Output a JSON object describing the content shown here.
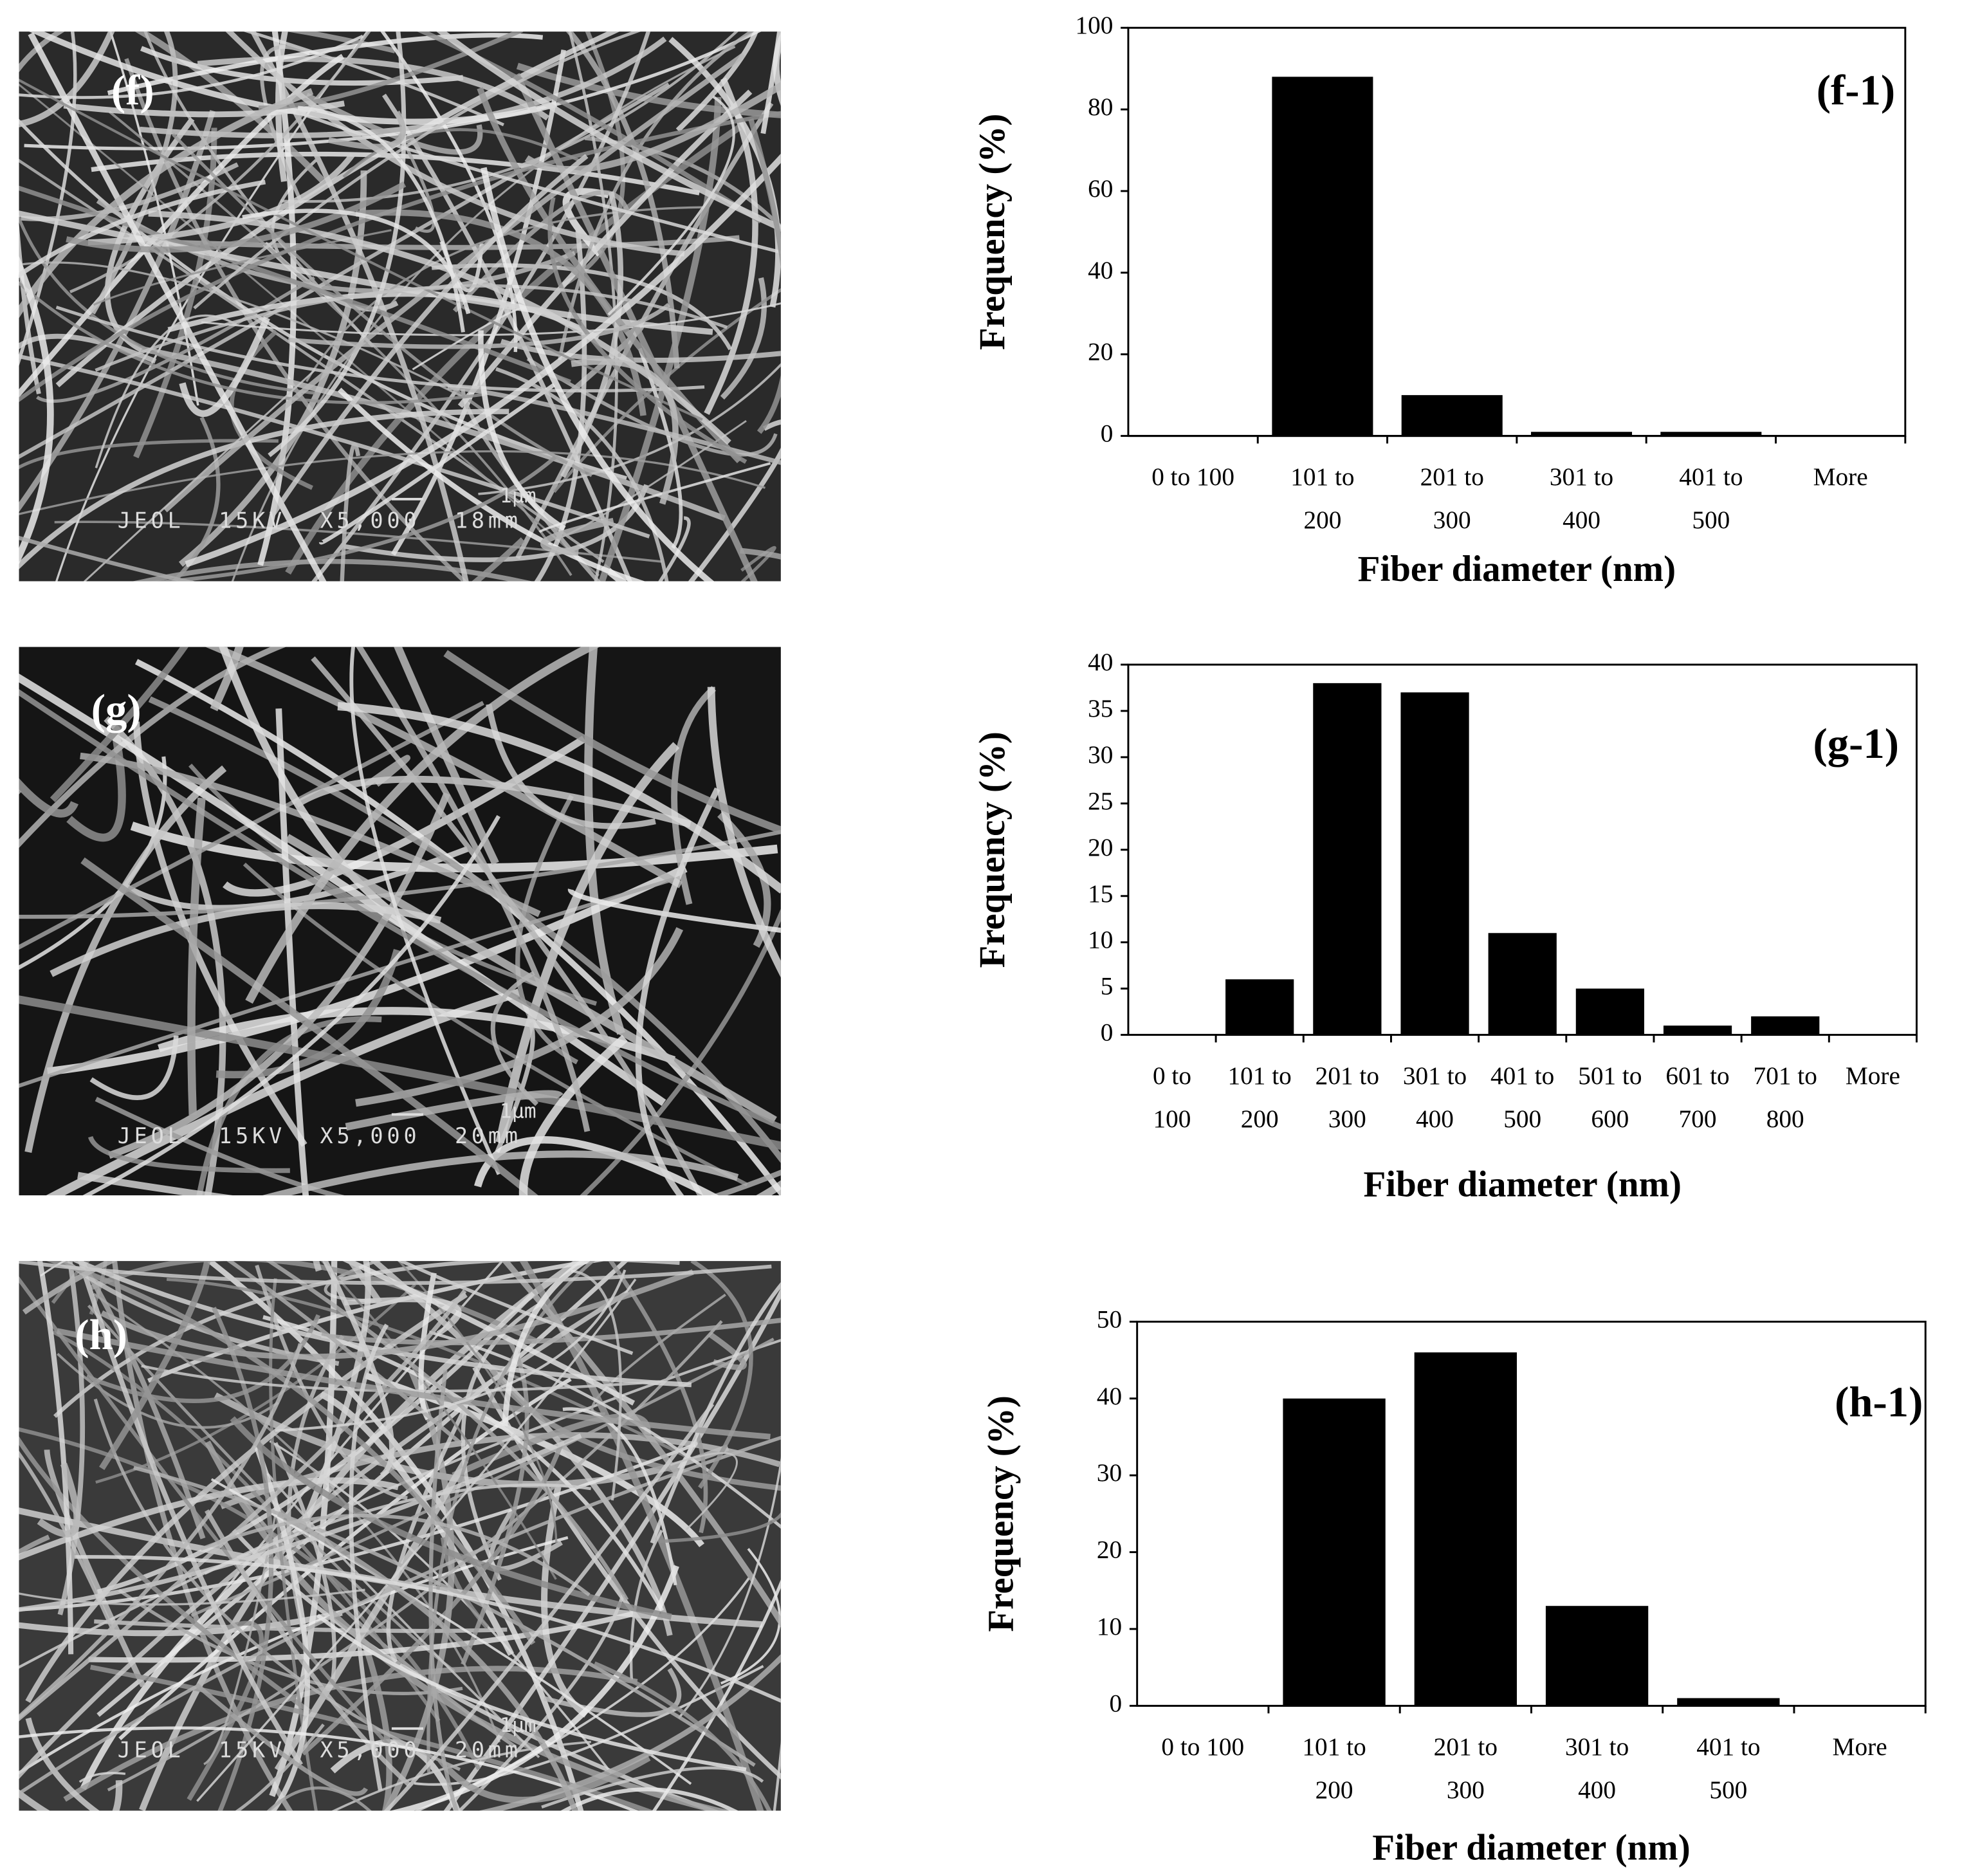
{
  "chart_data": [
    {
      "type": "bar",
      "annotation": "(f-1)",
      "x_label": "Fiber diameter (nm)",
      "y_label": "Frequency (%)",
      "categories": [
        "0 to 100",
        "101 to 200",
        "201 to 300",
        "301 to 400",
        "401 to 500",
        "More"
      ],
      "values": [
        0,
        88,
        10,
        1,
        1,
        0
      ],
      "color": "#000000",
      "ylim": [
        0,
        100
      ],
      "yticks": [
        0,
        20,
        40,
        60,
        80,
        100
      ]
    },
    {
      "type": "bar",
      "annotation": "(g-1)",
      "x_label": "Fiber diameter (nm)",
      "y_label": "Frequency (%)",
      "categories": [
        "0 to 100",
        "101 to 200",
        "201 to 300",
        "301 to 400",
        "401 to 500",
        "501 to 600",
        "601 to 700",
        "701 to 800",
        "More"
      ],
      "values": [
        0,
        6,
        38,
        37,
        11,
        5,
        1,
        2,
        0
      ],
      "color": "#000000",
      "ylim": [
        0,
        40
      ],
      "yticks": [
        0,
        5,
        10,
        15,
        20,
        25,
        30,
        35,
        40
      ]
    },
    {
      "type": "bar",
      "annotation": "(h-1)",
      "x_label": "Fiber diameter (nm)",
      "y_label": "Frequency (%)",
      "categories": [
        "0 to 100",
        "101 to 200",
        "201 to 300",
        "301 to 400",
        "401 to 500",
        "More"
      ],
      "values": [
        0,
        40,
        46,
        13,
        1,
        0
      ],
      "color": "#000000",
      "ylim": [
        0,
        50
      ],
      "yticks": [
        0,
        10,
        20,
        30,
        40,
        50
      ]
    }
  ],
  "images": [
    {
      "label": "(f)",
      "scale_bar": "1μm",
      "caption": "JEOL 15KV X5,000 18mm"
    },
    {
      "label": "(g)",
      "scale_bar": "1μm",
      "caption": "JEOL 15KV X5,000 20mm"
    },
    {
      "label": "(h)",
      "scale_bar": "1μm",
      "caption": "JEOL 15KV X5,000 20mm"
    }
  ]
}
